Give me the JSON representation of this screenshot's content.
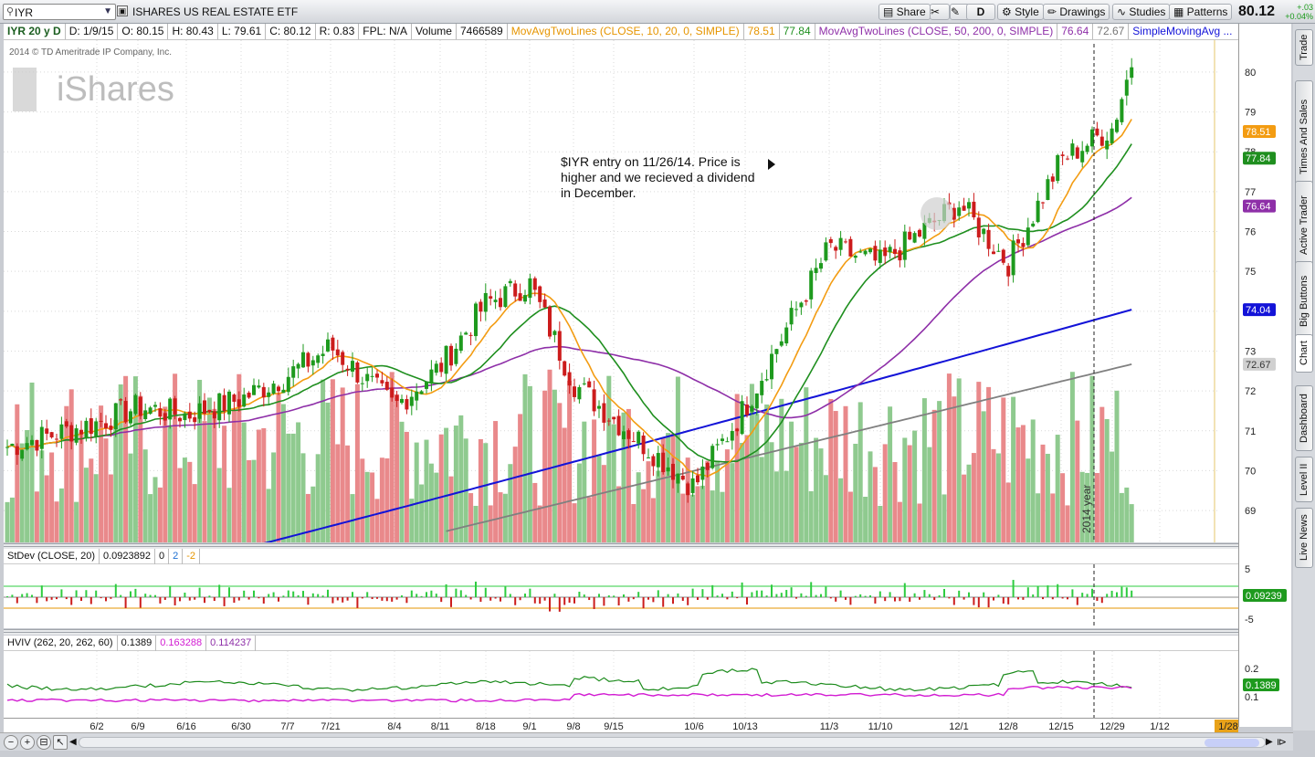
{
  "toolbar": {
    "symbol": "IYR",
    "name": "ISHARES US REAL ESTATE ETF",
    "share": "Share",
    "aggregation": "D",
    "style": "Style",
    "drawings": "Drawings",
    "studies": "Studies",
    "patterns": "Patterns",
    "last_price": "80.12",
    "change": "+.03",
    "change_pct": "+0.04%"
  },
  "infobar": {
    "period": "IYR 20 y D",
    "date": "D: 1/9/15",
    "open": "O: 80.15",
    "high": "H: 80.43",
    "low": "L: 79.61",
    "close": "C: 80.12",
    "range": "R: 0.83",
    "fpl": "FPL: N/A",
    "volume_label": "Volume",
    "volume_value": "7466589",
    "ma1_label": "MovAvgTwoLines (CLOSE, 10, 20, 0, SIMPLE)",
    "ma1_v1": "78.51",
    "ma1_v2": "77.84",
    "ma2_label": "MovAvgTwoLines (CLOSE, 50, 200, 0, SIMPLE)",
    "ma2_v1": "76.64",
    "ma2_v2": "72.67",
    "sma_label": "SimpleMovingAvg ..."
  },
  "watermark": {
    "copyright": "2014 © TD Ameritrade IP Company, Inc.",
    "brand": "iShares"
  },
  "annotation": {
    "line1": "$IYR entry on 11/26/14.  Price is",
    "line2": "higher and we recieved a dividend",
    "line3": "in December."
  },
  "year_marker": "2014 year",
  "price_axis": {
    "ticks": [
      "80",
      "79",
      "78",
      "77",
      "76",
      "75",
      "74",
      "73",
      "72",
      "71",
      "70",
      "69"
    ],
    "tags": {
      "sma10": "78.51",
      "sma20": "77.84",
      "sma50": "76.64",
      "ma100": "74.04",
      "sma200": "72.67",
      "last": "80.12"
    }
  },
  "stdev": {
    "label": "StDev (CLOSE, 20)",
    "value": "0.0923892",
    "v0": "0",
    "v2": "2",
    "vm2": "-2",
    "axis_top": "5",
    "axis_bottom": "-5",
    "tag": "0.09239"
  },
  "hviv": {
    "label": "HVIV (262, 20, 262, 60)",
    "v1": "0.1389",
    "v2": "0.163288",
    "v3": "0.114237",
    "axis_top": "0.2",
    "axis_bottom": "0.1",
    "tag": "0.1389"
  },
  "x_axis": {
    "labels": [
      "6/2",
      "6/9",
      "6/16",
      "6/30",
      "7/7",
      "7/21",
      "8/4",
      "8/11",
      "8/18",
      "9/1",
      "9/8",
      "9/15",
      "10/6",
      "10/13",
      "11/3",
      "11/10",
      "12/1",
      "12/8",
      "12/15",
      "12/29",
      "1/12"
    ],
    "end_tag": "1/28"
  },
  "sidebar": {
    "tabs": [
      "Trade",
      "Times And Sales",
      "Active Trader",
      "Big Buttons",
      "Chart",
      "Dashboard",
      "Level II",
      "Live News"
    ]
  },
  "colors": {
    "sma10": "#f39c12",
    "sma20": "#1f8f1f",
    "sma50": "#8e2fa8",
    "ma100": "#1313d8",
    "sma200": "#808080",
    "up": "#1e9a1e",
    "down": "#cc1c1c",
    "vol_up": "#8fca8f",
    "vol_down": "#e9898b"
  },
  "chart_data": {
    "type": "candlestick",
    "title": "IYR 20 y D",
    "ylim": [
      68.2,
      80.8
    ],
    "y_ticks": [
      69,
      70,
      71,
      72,
      73,
      74,
      75,
      76,
      77,
      78,
      79,
      80
    ],
    "series": [
      {
        "name": "MovAvgTwoLines (CLOSE, 10, 20, 0, SIMPLE)",
        "last": 78.51
      },
      {
        "name": "MovAvgTwoLines (CLOSE, 10, 20, 0, SIMPLE)",
        "last": 77.84
      },
      {
        "name": "MovAvgTwoLines (CLOSE, 50, 200, 0, SIMPLE)",
        "last": 76.64
      },
      {
        "name": "MovAvgTwoLines (CLOSE, 50, 200, 0, SIMPLE)",
        "last": 72.67
      },
      {
        "name": "SimpleMovingAvg ...",
        "last": 74.04
      }
    ],
    "close_anchors": [
      {
        "x": "6/2",
        "y": 71.2
      },
      {
        "x": "6/9",
        "y": 71.6
      },
      {
        "x": "6/16",
        "y": 71.4
      },
      {
        "x": "6/30",
        "y": 71.8
      },
      {
        "x": "7/7",
        "y": 72.4
      },
      {
        "x": "7/21",
        "y": 73.1
      },
      {
        "x": "8/4",
        "y": 71.6
      },
      {
        "x": "8/11",
        "y": 72.6
      },
      {
        "x": "8/18",
        "y": 74.2
      },
      {
        "x": "9/1",
        "y": 74.7
      },
      {
        "x": "9/8",
        "y": 72.2
      },
      {
        "x": "9/15",
        "y": 71.3
      },
      {
        "x": "10/6",
        "y": 69.6
      },
      {
        "x": "10/13",
        "y": 71.6
      },
      {
        "x": "11/3",
        "y": 75.6
      },
      {
        "x": "11/10",
        "y": 75.2
      },
      {
        "x": "12/1",
        "y": 76.7
      },
      {
        "x": "12/8",
        "y": 75.2
      },
      {
        "x": "12/15",
        "y": 77.8
      },
      {
        "x": "12/29",
        "y": 78.6
      },
      {
        "x": "1/9/15",
        "y": 80.12
      }
    ]
  }
}
